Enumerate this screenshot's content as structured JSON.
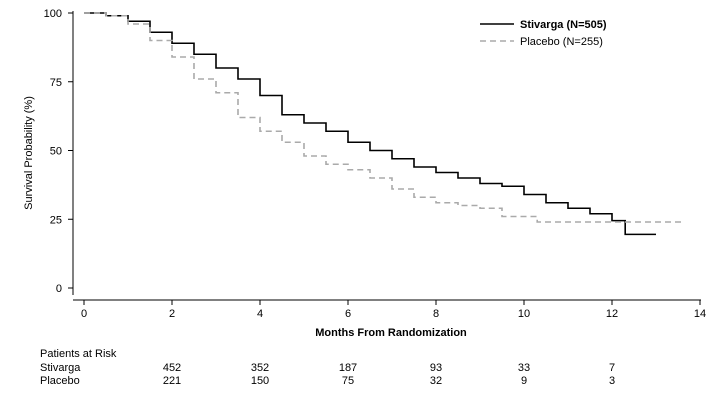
{
  "chart_data": {
    "type": "line",
    "xlabel": "Months From Randomization",
    "ylabel": "Survival Probability (%)",
    "xlim": [
      0,
      14
    ],
    "ylim": [
      0,
      100
    ],
    "xticks": [
      0,
      2,
      4,
      6,
      8,
      10,
      12,
      14
    ],
    "yticks": [
      0,
      25,
      50,
      75,
      100
    ],
    "grid": false,
    "legend_position": "top-right",
    "series": [
      {
        "name": "Stivarga (N=505)",
        "style": "solid",
        "color": "#000000",
        "points": [
          [
            0,
            100
          ],
          [
            0.5,
            99
          ],
          [
            1,
            97
          ],
          [
            1.5,
            93
          ],
          [
            2,
            89
          ],
          [
            2.5,
            85
          ],
          [
            3,
            80
          ],
          [
            3.5,
            76
          ],
          [
            4,
            70
          ],
          [
            4.5,
            63
          ],
          [
            5,
            60
          ],
          [
            5.5,
            57
          ],
          [
            6,
            53
          ],
          [
            6.5,
            50
          ],
          [
            7,
            47
          ],
          [
            7.5,
            44
          ],
          [
            8,
            42
          ],
          [
            8.5,
            40
          ],
          [
            9,
            38
          ],
          [
            9.5,
            37
          ],
          [
            10,
            34
          ],
          [
            10.5,
            31
          ],
          [
            11,
            29
          ],
          [
            11.5,
            27
          ],
          [
            12,
            24.5
          ],
          [
            12.3,
            19.5
          ],
          [
            13,
            19.5
          ]
        ]
      },
      {
        "name": "Placebo (N=255)",
        "style": "dashed",
        "color": "#aaaaaa",
        "points": [
          [
            0,
            100
          ],
          [
            0.5,
            99
          ],
          [
            1,
            96
          ],
          [
            1.5,
            90
          ],
          [
            2,
            84
          ],
          [
            2.5,
            76
          ],
          [
            3,
            71
          ],
          [
            3.5,
            62
          ],
          [
            4,
            57
          ],
          [
            4.5,
            53
          ],
          [
            5,
            48
          ],
          [
            5.5,
            45
          ],
          [
            6,
            43
          ],
          [
            6.5,
            40
          ],
          [
            7,
            36
          ],
          [
            7.5,
            33
          ],
          [
            8,
            31
          ],
          [
            8.5,
            30
          ],
          [
            9,
            29
          ],
          [
            9.5,
            26
          ],
          [
            10,
            26
          ],
          [
            10.3,
            24
          ],
          [
            11,
            24
          ],
          [
            12,
            24
          ],
          [
            13.6,
            24
          ]
        ]
      }
    ]
  },
  "risk_table": {
    "title": "Patients at Risk",
    "months": [
      2,
      4,
      6,
      8,
      10,
      12
    ],
    "rows": [
      {
        "label": "Stivarga",
        "values": [
          "452",
          "352",
          "187",
          "93",
          "33",
          "7"
        ]
      },
      {
        "label": "Placebo",
        "values": [
          "221",
          "150",
          "75",
          "32",
          "9",
          "3"
        ]
      }
    ]
  }
}
